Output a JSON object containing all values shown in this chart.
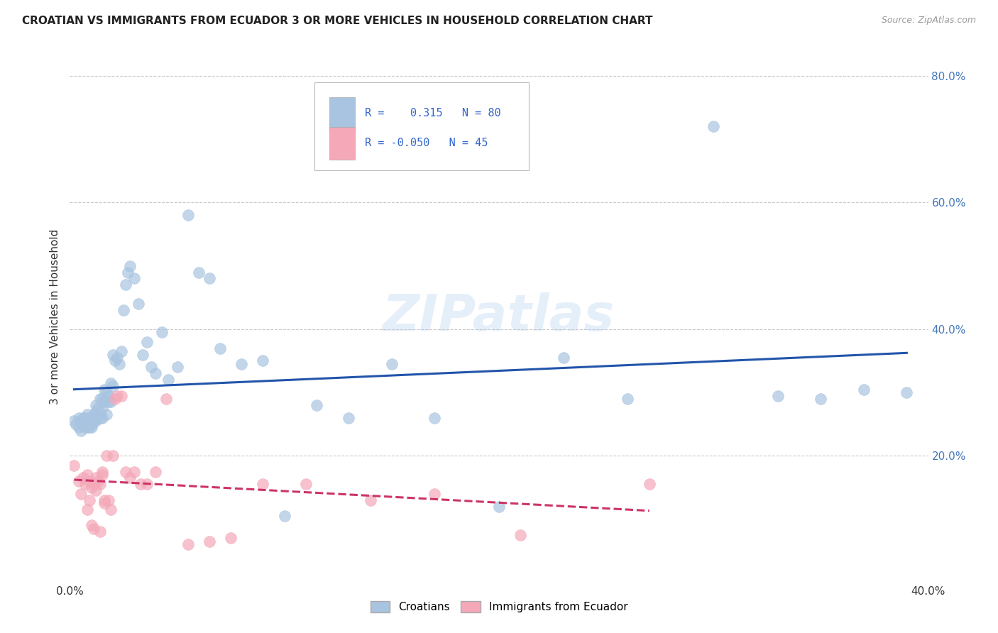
{
  "title": "CROATIAN VS IMMIGRANTS FROM ECUADOR 3 OR MORE VEHICLES IN HOUSEHOLD CORRELATION CHART",
  "source": "Source: ZipAtlas.com",
  "ylabel": "3 or more Vehicles in Household",
  "watermark": "ZIPatlas",
  "croatian_R": 0.315,
  "croatian_N": 80,
  "ecuador_R": -0.05,
  "ecuador_N": 45,
  "blue_color": "#A8C4E0",
  "pink_color": "#F4A8B8",
  "blue_line_color": "#2255AA",
  "pink_line_color": "#CC3366",
  "background_color": "#FFFFFF",
  "grid_color": "#BBBBBB",
  "xlim": [
    0.0,
    0.4
  ],
  "ylim": [
    0.0,
    0.84
  ],
  "yticks": [
    0.0,
    0.2,
    0.4,
    0.6,
    0.8
  ],
  "ytick_labels": [
    "",
    "20.0%",
    "40.0%",
    "60.0%",
    "80.0%"
  ],
  "legend_R1_color": "#3366CC",
  "legend_R2_color": "#3366CC",
  "croatian_x": [
    0.002,
    0.003,
    0.004,
    0.004,
    0.005,
    0.005,
    0.006,
    0.006,
    0.007,
    0.007,
    0.007,
    0.008,
    0.008,
    0.008,
    0.009,
    0.009,
    0.009,
    0.01,
    0.01,
    0.01,
    0.01,
    0.011,
    0.011,
    0.012,
    0.012,
    0.012,
    0.013,
    0.013,
    0.014,
    0.014,
    0.014,
    0.015,
    0.015,
    0.015,
    0.016,
    0.016,
    0.017,
    0.017,
    0.018,
    0.018,
    0.019,
    0.019,
    0.02,
    0.02,
    0.021,
    0.022,
    0.023,
    0.024,
    0.025,
    0.026,
    0.027,
    0.028,
    0.03,
    0.032,
    0.034,
    0.036,
    0.038,
    0.04,
    0.043,
    0.046,
    0.05,
    0.055,
    0.06,
    0.065,
    0.07,
    0.08,
    0.09,
    0.1,
    0.115,
    0.13,
    0.15,
    0.17,
    0.2,
    0.23,
    0.26,
    0.3,
    0.33,
    0.35,
    0.37,
    0.39
  ],
  "croatian_y": [
    0.255,
    0.25,
    0.26,
    0.245,
    0.255,
    0.24,
    0.26,
    0.25,
    0.26,
    0.25,
    0.245,
    0.255,
    0.245,
    0.265,
    0.255,
    0.245,
    0.26,
    0.255,
    0.245,
    0.26,
    0.25,
    0.255,
    0.265,
    0.27,
    0.255,
    0.28,
    0.265,
    0.275,
    0.29,
    0.26,
    0.265,
    0.29,
    0.275,
    0.26,
    0.305,
    0.285,
    0.3,
    0.265,
    0.285,
    0.295,
    0.315,
    0.285,
    0.36,
    0.31,
    0.35,
    0.355,
    0.345,
    0.365,
    0.43,
    0.47,
    0.49,
    0.5,
    0.48,
    0.44,
    0.36,
    0.38,
    0.34,
    0.33,
    0.395,
    0.32,
    0.34,
    0.58,
    0.49,
    0.48,
    0.37,
    0.345,
    0.35,
    0.105,
    0.28,
    0.26,
    0.345,
    0.26,
    0.12,
    0.355,
    0.29,
    0.72,
    0.295,
    0.29,
    0.305,
    0.3
  ],
  "ecuador_x": [
    0.002,
    0.004,
    0.005,
    0.006,
    0.007,
    0.008,
    0.008,
    0.009,
    0.009,
    0.01,
    0.01,
    0.011,
    0.011,
    0.012,
    0.012,
    0.013,
    0.014,
    0.014,
    0.015,
    0.015,
    0.016,
    0.016,
    0.017,
    0.018,
    0.019,
    0.02,
    0.021,
    0.022,
    0.024,
    0.026,
    0.028,
    0.03,
    0.033,
    0.036,
    0.04,
    0.045,
    0.055,
    0.065,
    0.075,
    0.09,
    0.11,
    0.14,
    0.17,
    0.21,
    0.27
  ],
  "ecuador_y": [
    0.185,
    0.16,
    0.14,
    0.165,
    0.155,
    0.115,
    0.17,
    0.13,
    0.16,
    0.09,
    0.15,
    0.085,
    0.155,
    0.145,
    0.165,
    0.16,
    0.155,
    0.08,
    0.17,
    0.175,
    0.13,
    0.125,
    0.2,
    0.13,
    0.115,
    0.2,
    0.29,
    0.295,
    0.295,
    0.175,
    0.165,
    0.175,
    0.155,
    0.155,
    0.175,
    0.29,
    0.06,
    0.065,
    0.07,
    0.155,
    0.155,
    0.13,
    0.14,
    0.075,
    0.155
  ]
}
